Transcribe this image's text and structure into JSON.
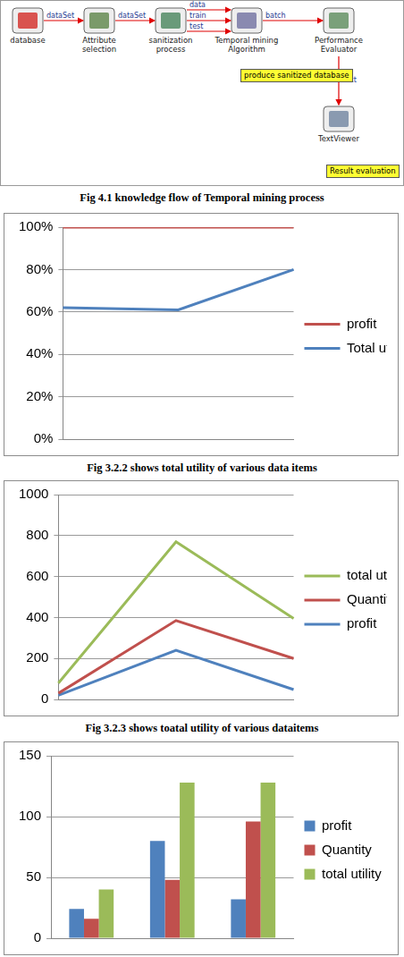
{
  "diagram": {
    "nodes": [
      {
        "label": "database"
      },
      {
        "label": "Attribute selection"
      },
      {
        "label": "sanitization process"
      },
      {
        "label": "Temporal mining Algorithm"
      },
      {
        "label": "Performance Evaluator"
      },
      {
        "label": "TextViewer"
      }
    ],
    "edges": [
      {
        "from": "database",
        "to": "Attribute selection",
        "label": "dataSet"
      },
      {
        "from": "Attribute selection",
        "to": "sanitization process",
        "label": "dataSet"
      },
      {
        "from": "sanitization process",
        "to": "Temporal mining Algorithm",
        "label": "data"
      },
      {
        "from": "sanitization process",
        "to": "Temporal mining Algorithm",
        "label": "train"
      },
      {
        "from": "sanitization process",
        "to": "Temporal mining Algorithm",
        "label": "test"
      },
      {
        "from": "Temporal mining Algorithm",
        "to": "Performance Evaluator",
        "label": "batch"
      },
      {
        "from": "Performance Evaluator",
        "to": "TextViewer",
        "label": "text"
      }
    ],
    "notes": [
      "produce sanitized database",
      "Result evaluation"
    ],
    "caption": "Fig 4.1 knowledge flow of Temporal mining process"
  },
  "chart_data": [
    {
      "type": "line",
      "caption": "Fig 3.2.2 shows total utility of various data items",
      "categories": [
        null,
        null,
        null
      ],
      "series": [
        {
          "name": "profit",
          "color": "#c0504d",
          "values": [
            100,
            100,
            100
          ]
        },
        {
          "name": "Total utility",
          "color": "#4f81bd",
          "values": [
            62,
            61,
            80
          ]
        }
      ],
      "ylim": [
        0,
        100
      ],
      "yticks": [
        {
          "value": 0,
          "label": "0%"
        },
        {
          "value": 20,
          "label": "20%"
        },
        {
          "value": 40,
          "label": "40%"
        },
        {
          "value": 60,
          "label": "60%"
        },
        {
          "value": 80,
          "label": "80%"
        },
        {
          "value": 100,
          "label": "100%"
        }
      ],
      "grid": true,
      "legend": "right",
      "tick_labels": "y"
    },
    {
      "type": "line",
      "caption": "Fig 3.2.3 shows toatal utility of various dataitems",
      "categories": [
        null,
        null,
        null
      ],
      "series": [
        {
          "name": "total utility",
          "color": "#9bbb59",
          "values": [
            80,
            770,
            395
          ]
        },
        {
          "name": "Quantity",
          "color": "#c0504d",
          "values": [
            30,
            385,
            200
          ]
        },
        {
          "name": "profit",
          "color": "#4f81bd",
          "values": [
            20,
            240,
            48
          ]
        }
      ],
      "ylim": [
        0,
        1000
      ],
      "yticks": [
        0,
        200,
        400,
        600,
        800,
        1000
      ],
      "grid": true,
      "legend": "right",
      "tick_labels": "y"
    },
    {
      "type": "bar",
      "categories": [
        null,
        null,
        null
      ],
      "series": [
        {
          "name": "profit",
          "color": "#4f81bd",
          "values": [
            24,
            80,
            32
          ]
        },
        {
          "name": "Quantity",
          "color": "#c0504d",
          "values": [
            16,
            48,
            96
          ]
        },
        {
          "name": "total utility",
          "color": "#9bbb59",
          "values": [
            40,
            128,
            128
          ]
        }
      ],
      "ylim": [
        0,
        150
      ],
      "yticks": [
        0,
        50,
        100,
        150
      ],
      "grid": true,
      "legend": "right",
      "tick_labels": "y"
    }
  ]
}
